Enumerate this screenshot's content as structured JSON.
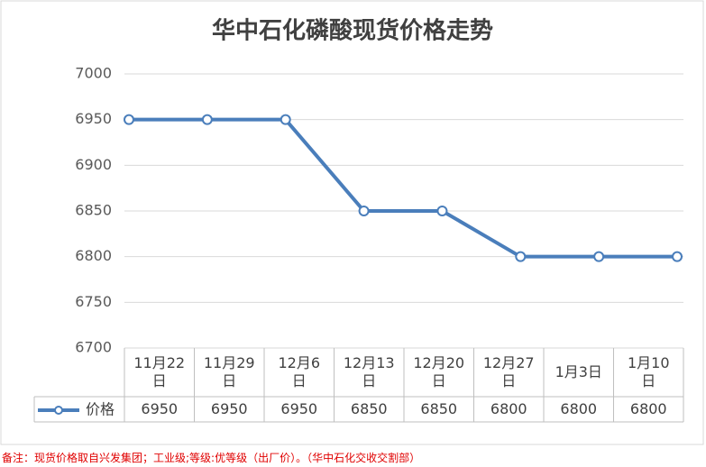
{
  "chart_data": {
    "type": "line",
    "title": "华中石化磷酸现货价格走势",
    "categories": [
      "11月22日",
      "11月29日",
      "12月6日",
      "12月13日",
      "12月20日",
      "12月27日",
      "1月3日",
      "1月10日"
    ],
    "series": [
      {
        "name": "价格",
        "color": "#4a7ebb",
        "values": [
          6950,
          6950,
          6950,
          6850,
          6850,
          6800,
          6800,
          6800
        ]
      }
    ],
    "ylim": [
      6700,
      7000
    ],
    "yticks": [
      6700,
      6750,
      6800,
      6850,
      6900,
      6950,
      7000
    ],
    "grid": true
  },
  "note": "备注：现货价格取自兴发集团；工业级;等级:优等级（出厂价）。（华中石化交收交割部）"
}
